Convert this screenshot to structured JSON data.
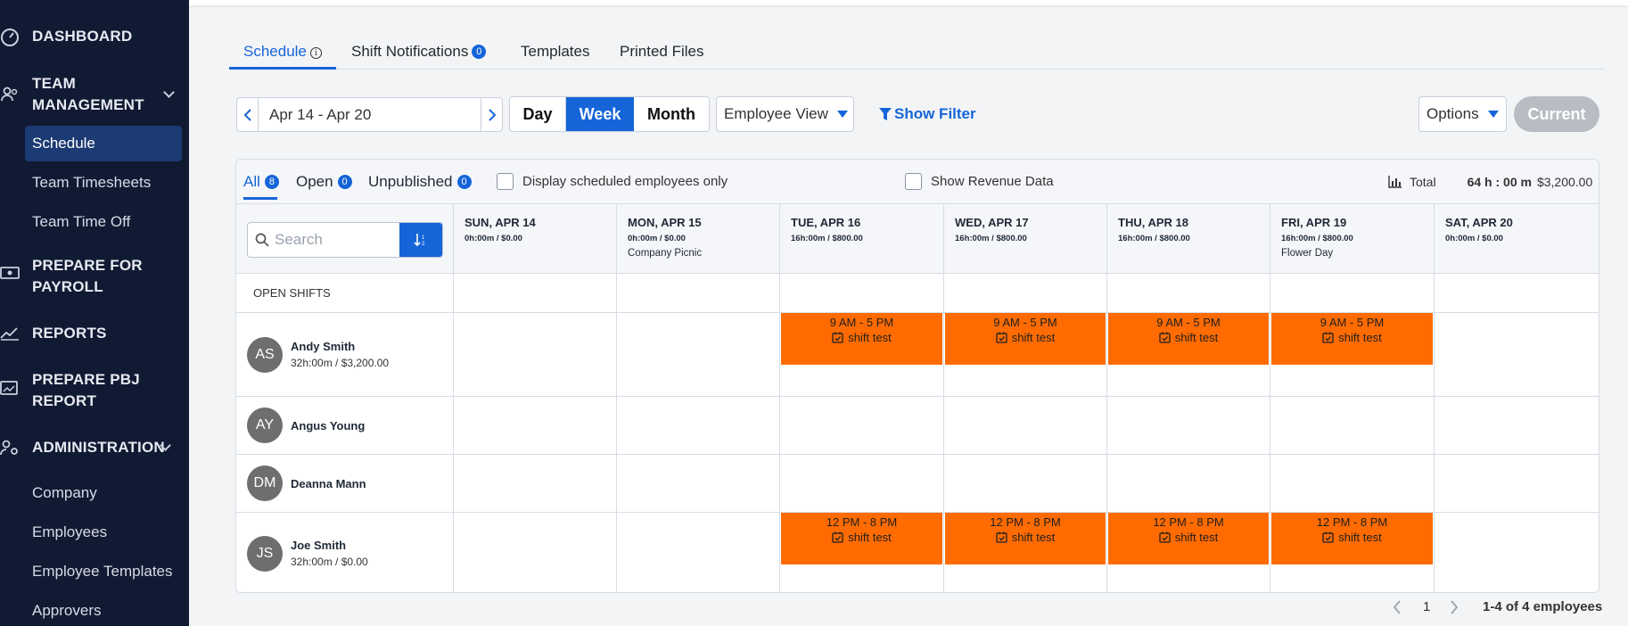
{
  "sidebar": {
    "dashboard": "DASHBOARD",
    "team_management": "TEAM MANAGEMENT",
    "team_items": [
      "Schedule",
      "Team Timesheets",
      "Team Time Off"
    ],
    "prepare_payroll": "PREPARE FOR PAYROLL",
    "reports": "REPORTS",
    "prepare_pbj": "PREPARE PBJ REPORT",
    "administration": "ADMINISTRATION",
    "admin_items": [
      "Company",
      "Employees",
      "Employee Templates",
      "Approvers"
    ]
  },
  "tabs": {
    "schedule": "Schedule",
    "info_icon": "i",
    "shift_notifications": "Shift Notifications",
    "shift_notifications_count": "0",
    "templates": "Templates",
    "printed_files": "Printed Files"
  },
  "toolbar": {
    "date_range": "Apr 14 - Apr 20",
    "day": "Day",
    "week": "Week",
    "month": "Month",
    "view": "Employee View",
    "show_filter": "Show Filter",
    "options": "Options",
    "current": "Current"
  },
  "filters": {
    "all": "All",
    "all_count": "8",
    "open": "Open",
    "open_count": "0",
    "unpublished": "Unpublished",
    "unpublished_count": "0",
    "display_scheduled": "Display scheduled employees only",
    "show_revenue": "Show Revenue Data",
    "total_label": "Total",
    "total_hours": "64 h : 00 m",
    "total_amount": "$3,200.00"
  },
  "search": {
    "placeholder": "Search"
  },
  "days": [
    {
      "name": "SUN, APR 14",
      "hours": "0h:00m / $0.00",
      "event": ""
    },
    {
      "name": "MON, APR 15",
      "hours": "0h:00m / $0.00",
      "event": "Company Picnic"
    },
    {
      "name": "TUE, APR 16",
      "hours": "16h:00m / $800.00",
      "event": ""
    },
    {
      "name": "WED, APR 17",
      "hours": "16h:00m / $800.00",
      "event": ""
    },
    {
      "name": "THU, APR 18",
      "hours": "16h:00m / $800.00",
      "event": ""
    },
    {
      "name": "FRI, APR 19",
      "hours": "16h:00m / $800.00",
      "event": "Flower Day"
    },
    {
      "name": "SAT, APR 20",
      "hours": "0h:00m / $0.00",
      "event": ""
    }
  ],
  "open_shifts_label": "OPEN SHIFTS",
  "employees": [
    {
      "initials": "AS",
      "name": "Andy Smith",
      "hours": "32h:00m / $3,200.00"
    },
    {
      "initials": "AY",
      "name": "Angus Young",
      "hours": ""
    },
    {
      "initials": "DM",
      "name": "Deanna Mann",
      "hours": ""
    },
    {
      "initials": "JS",
      "name": "Joe Smith",
      "hours": "32h:00m / $0.00"
    }
  ],
  "shifts": {
    "andy": {
      "time": "9 AM - 5 PM",
      "label": "shift test"
    },
    "joe": {
      "time": "12 PM - 8 PM",
      "label": "shift test"
    }
  },
  "shift_color": "#ff6b00",
  "accent_color": "#1565d8",
  "pager": {
    "page": "1",
    "summary": "1-4 of 4 employees"
  }
}
